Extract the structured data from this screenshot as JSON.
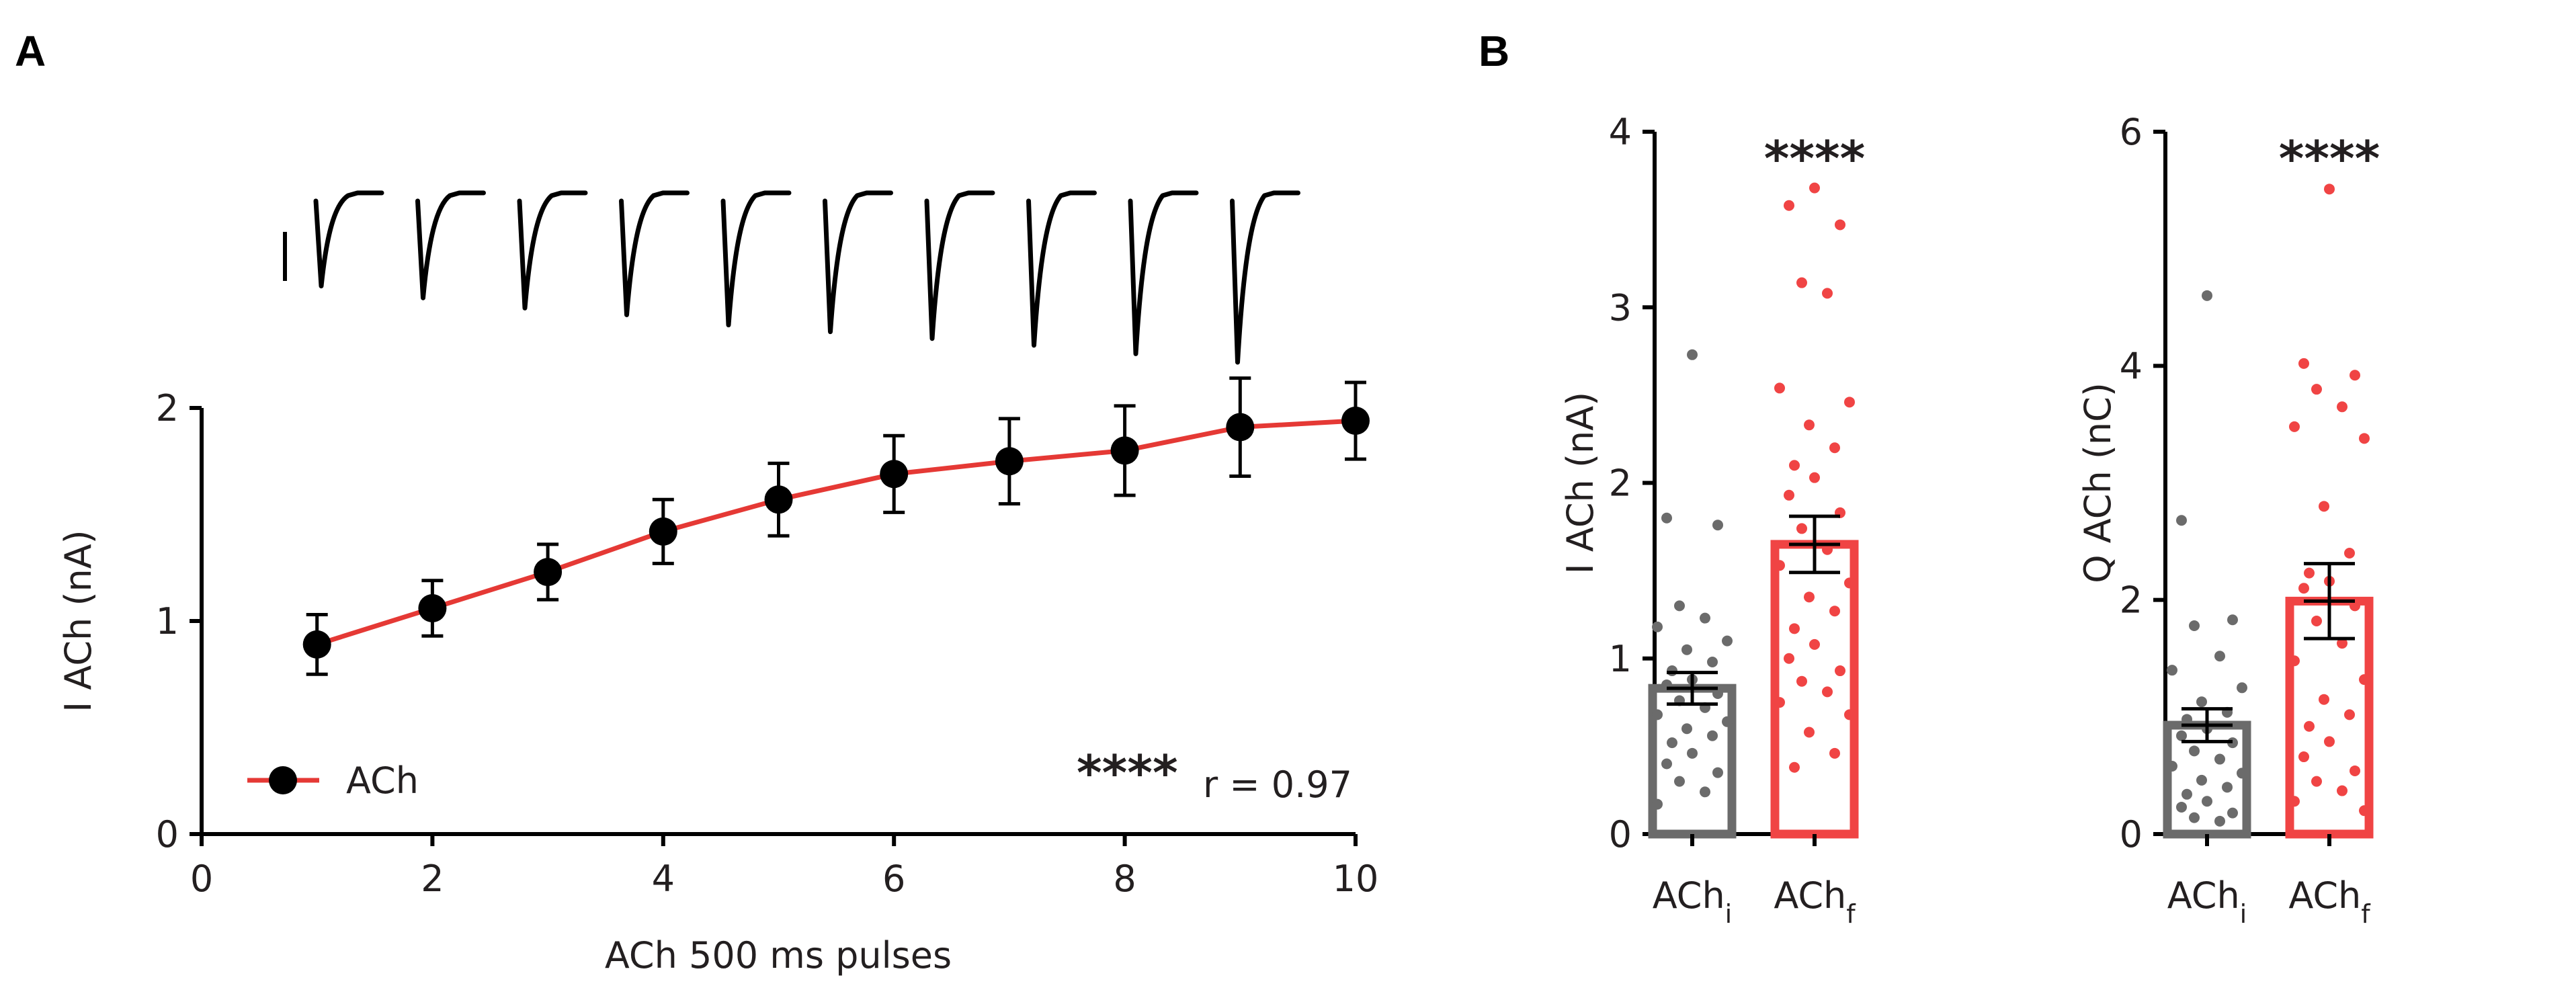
{
  "panel_labels": {
    "a": "A",
    "b": "B"
  },
  "colors": {
    "ach_series": "#e53935",
    "initial_bar": "#6b6b6b",
    "final_bar": "#f04444",
    "marker": "#000000"
  },
  "chart_data": [
    {
      "type": "line",
      "panel": "A",
      "title": "",
      "xlabel": "ACh 500 ms pulses",
      "ylabel": "I ACh (nA)",
      "xlim": [
        0,
        10
      ],
      "ylim": [
        0,
        2
      ],
      "xticks": [
        0,
        2,
        4,
        6,
        8,
        10
      ],
      "yticks": [
        0,
        1,
        2
      ],
      "series": [
        {
          "name": "ACh",
          "x": [
            1,
            2,
            3,
            4,
            5,
            6,
            7,
            8,
            9,
            10
          ],
          "y": [
            0.89,
            1.06,
            1.23,
            1.42,
            1.57,
            1.69,
            1.75,
            1.8,
            1.91,
            1.94
          ],
          "error": [
            0.14,
            0.13,
            0.13,
            0.15,
            0.17,
            0.18,
            0.2,
            0.21,
            0.23,
            0.18
          ]
        }
      ],
      "legend": {
        "entry": "ACh",
        "position": "bottom-left"
      },
      "annotation": {
        "stars": "****",
        "text": "r = 0.97"
      },
      "traces": {
        "count": 10,
        "relative_peaks": [
          0.55,
          0.62,
          0.68,
          0.72,
          0.78,
          0.82,
          0.86,
          0.9,
          0.95,
          1.0
        ]
      }
    },
    {
      "type": "bar",
      "panel": "B-left",
      "ylabel": "I ACh (nA)",
      "ylim": [
        0,
        4
      ],
      "yticks": [
        0,
        1,
        2,
        3,
        4
      ],
      "categories": [
        {
          "base": "ACh",
          "sub": "i"
        },
        {
          "base": "ACh",
          "sub": "f"
        }
      ],
      "values": [
        0.83,
        1.65
      ],
      "error": [
        0.09,
        0.16
      ],
      "significance": "****",
      "points": [
        [
          2.73,
          1.8,
          1.76,
          1.3,
          1.23,
          1.18,
          1.1,
          1.05,
          0.98,
          0.93,
          0.88,
          0.85,
          0.8,
          0.76,
          0.72,
          0.68,
          0.64,
          0.6,
          0.56,
          0.52,
          0.46,
          0.4,
          0.35,
          0.3,
          0.24,
          0.17
        ],
        [
          3.68,
          3.58,
          3.47,
          3.14,
          3.08,
          2.54,
          2.46,
          2.33,
          2.2,
          2.1,
          2.03,
          1.93,
          1.83,
          1.74,
          1.62,
          1.53,
          1.43,
          1.35,
          1.27,
          1.17,
          1.08,
          1.0,
          0.93,
          0.87,
          0.81,
          0.75,
          0.68,
          0.58,
          0.46,
          0.38
        ]
      ]
    },
    {
      "type": "bar",
      "panel": "B-right",
      "ylabel": "Q ACh (nC)",
      "ylim": [
        0,
        6
      ],
      "yticks": [
        0,
        2,
        4,
        6
      ],
      "categories": [
        {
          "base": "ACh",
          "sub": "i"
        },
        {
          "base": "ACh",
          "sub": "f"
        }
      ],
      "values": [
        0.93,
        1.99
      ],
      "error": [
        0.14,
        0.32
      ],
      "significance": "****",
      "points": [
        [
          4.6,
          2.68,
          1.83,
          1.78,
          1.52,
          1.4,
          1.25,
          1.13,
          1.04,
          0.98,
          0.9,
          0.84,
          0.78,
          0.71,
          0.64,
          0.58,
          0.52,
          0.46,
          0.4,
          0.34,
          0.28,
          0.23,
          0.18,
          0.14,
          0.11
        ],
        [
          5.51,
          4.02,
          3.92,
          3.8,
          3.65,
          3.48,
          3.38,
          2.8,
          2.4,
          2.23,
          2.16,
          2.1,
          1.95,
          1.82,
          1.63,
          1.48,
          1.32,
          1.15,
          1.02,
          0.92,
          0.79,
          0.66,
          0.54,
          0.45,
          0.37,
          0.28,
          0.2
        ]
      ]
    }
  ]
}
